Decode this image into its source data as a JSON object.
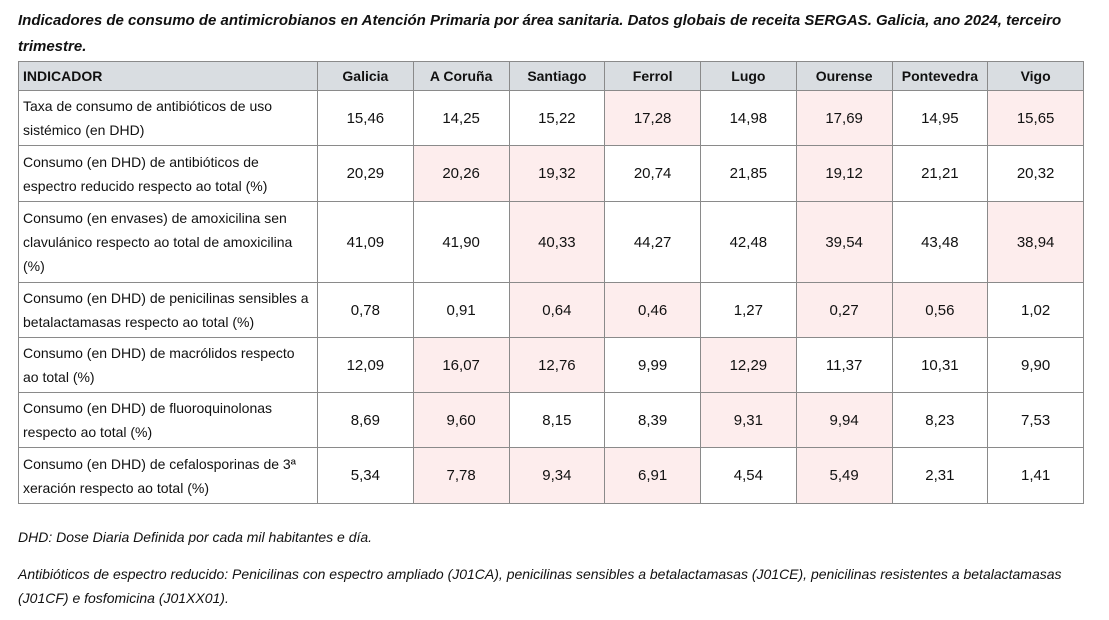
{
  "title": "Indicadores de consumo de antimicrobianos en Atención Primaria por área sanitaria. Datos globais de receita SERGAS. Galicia, ano 2024, terceiro trimestre.",
  "highlight_color": "#fdeded",
  "header": [
    "INDICADOR",
    "Galicia",
    "A Coruña",
    "Santiago",
    "Ferrol",
    "Lugo",
    "Ourense",
    "Pontevedra",
    "Vigo"
  ],
  "rows": [
    {
      "indicator": "Taxa de consumo de antibióticos de uso sistémico (en DHD)",
      "values": [
        "15,46",
        "14,25",
        "15,22",
        "17,28",
        "14,98",
        "17,69",
        "14,95",
        "15,65"
      ],
      "highlighted": [
        false,
        false,
        false,
        true,
        false,
        true,
        false,
        true
      ]
    },
    {
      "indicator": "Consumo (en DHD) de antibióticos de espectro reducido respecto ao total (%)",
      "values": [
        "20,29",
        "20,26",
        "19,32",
        "20,74",
        "21,85",
        "19,12",
        "21,21",
        "20,32"
      ],
      "highlighted": [
        false,
        true,
        true,
        false,
        false,
        true,
        false,
        false
      ]
    },
    {
      "indicator": "Consumo (en envases) de amoxicilina sen clavulánico respecto ao total de amoxicilina (%)",
      "values": [
        "41,09",
        "41,90",
        "40,33",
        "44,27",
        "42,48",
        "39,54",
        "43,48",
        "38,94"
      ],
      "highlighted": [
        false,
        false,
        true,
        false,
        false,
        true,
        false,
        true
      ]
    },
    {
      "indicator": "Consumo (en DHD) de penicilinas sensibles a betalactamasas respecto ao total (%)",
      "values": [
        "0,78",
        "0,91",
        "0,64",
        "0,46",
        "1,27",
        "0,27",
        "0,56",
        "1,02"
      ],
      "highlighted": [
        false,
        false,
        true,
        true,
        false,
        true,
        true,
        false
      ]
    },
    {
      "indicator": "Consumo (en DHD) de macrólidos respecto ao total (%)",
      "values": [
        "12,09",
        "16,07",
        "12,76",
        "9,99",
        "12,29",
        "11,37",
        "10,31",
        "9,90"
      ],
      "highlighted": [
        false,
        true,
        true,
        false,
        true,
        false,
        false,
        false
      ]
    },
    {
      "indicator": "Consumo (en DHD) de fluoroquinolonas respecto ao total (%)",
      "values": [
        "8,69",
        "9,60",
        "8,15",
        "8,39",
        "9,31",
        "9,94",
        "8,23",
        "7,53"
      ],
      "highlighted": [
        false,
        true,
        false,
        false,
        true,
        true,
        false,
        false
      ]
    },
    {
      "indicator": "Consumo (en DHD) de cefalosporinas de 3ª xeración respecto ao total (%)",
      "values": [
        "5,34",
        "7,78",
        "9,34",
        "6,91",
        "4,54",
        "5,49",
        "2,31",
        "1,41"
      ],
      "highlighted": [
        false,
        true,
        true,
        true,
        false,
        true,
        false,
        false
      ]
    }
  ],
  "footnotes": [
    "DHD: Dose Diaria Definida por cada mil habitantes e día.",
    "Antibióticos de espectro reducido: Penicilinas con espectro ampliado (J01CA), penicilinas sensibles a betalactamasas (J01CE), penicilinas resistentes a betalactamasas (J01CF) e fosfomicina (J01XX01)."
  ]
}
